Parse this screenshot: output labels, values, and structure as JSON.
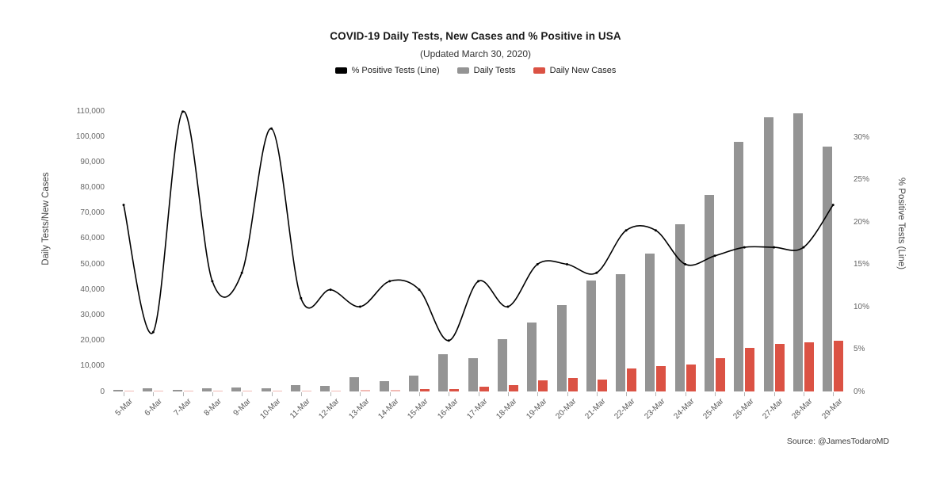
{
  "title": "COVID-19 Daily Tests, New Cases and % Positive in USA",
  "subtitle": "(Updated March 30, 2020)",
  "source": "Source: @JamesTodaroMD",
  "colors": {
    "line": "#000000",
    "tests_bar": "#949494",
    "cases_bar": "#db5244"
  },
  "legend": [
    {
      "label": "% Positive Tests (Line)",
      "color": "#000000"
    },
    {
      "label": "Daily Tests",
      "color": "#949494"
    },
    {
      "label": "Daily New Cases",
      "color": "#db5244"
    }
  ],
  "chart_data": {
    "type": "bar",
    "subtype": "grouped bars with overlay line",
    "title": "COVID-19 Daily Tests, New Cases and % Positive in USA",
    "subtitle": "(Updated March 30, 2020)",
    "grid": false,
    "legend_position": "top",
    "categories": [
      "5-Mar",
      "6-Mar",
      "7-Mar",
      "8-Mar",
      "9-Mar",
      "10-Mar",
      "11-Mar",
      "12-Mar",
      "13-Mar",
      "14-Mar",
      "15-Mar",
      "16-Mar",
      "17-Mar",
      "18-Mar",
      "19-Mar",
      "20-Mar",
      "21-Mar",
      "22-Mar",
      "23-Mar",
      "24-Mar",
      "25-Mar",
      "26-Mar",
      "27-Mar",
      "28-Mar",
      "29-Mar"
    ],
    "series": [
      {
        "name": "Daily Tests",
        "type": "bar",
        "axis": "left",
        "color": "#949494",
        "values": [
          600,
          1200,
          600,
          1200,
          1500,
          1200,
          2500,
          2200,
          5500,
          4000,
          6200,
          14500,
          13200,
          20500,
          27000,
          34000,
          43500,
          46000,
          54000,
          65500,
          77000,
          98000,
          107500,
          109000,
          96000
        ]
      },
      {
        "name": "Daily New Cases",
        "type": "bar",
        "axis": "left",
        "color": "#db5244",
        "values": [
          100,
          150,
          100,
          150,
          250,
          250,
          350,
          350,
          500,
          600,
          800,
          1000,
          1900,
          2600,
          4500,
          5200,
          4600,
          8900,
          9800,
          10700,
          13000,
          17000,
          18500,
          19300,
          19800
        ]
      },
      {
        "name": "% Positive Tests (Line)",
        "type": "line",
        "axis": "right",
        "color": "#000000",
        "values": [
          22,
          7,
          33,
          13,
          14,
          31,
          11,
          12,
          10,
          13,
          12,
          6,
          13,
          10,
          15,
          15,
          14,
          19,
          19,
          15,
          16,
          17,
          17,
          17,
          22
        ]
      }
    ],
    "left_axis": {
      "title": "Daily Tests/New Cases",
      "min": 0,
      "max": 110000,
      "tick_values": [
        0,
        10000,
        20000,
        30000,
        40000,
        50000,
        60000,
        70000,
        80000,
        90000,
        100000,
        110000
      ],
      "tick_labels": [
        "0",
        "10,000",
        "20,000",
        "30,000",
        "40,000",
        "50,000",
        "60,000",
        "70,000",
        "80,000",
        "90,000",
        "100,000",
        "110,000"
      ]
    },
    "right_axis": {
      "title": "% Positive Tests (Line)",
      "min": 0,
      "max": 30,
      "tick_values": [
        0,
        5,
        10,
        15,
        20,
        25,
        30
      ],
      "tick_labels": [
        "0%",
        "5%",
        "10%",
        "15%",
        "20%",
        "25%",
        "30%"
      ]
    }
  }
}
